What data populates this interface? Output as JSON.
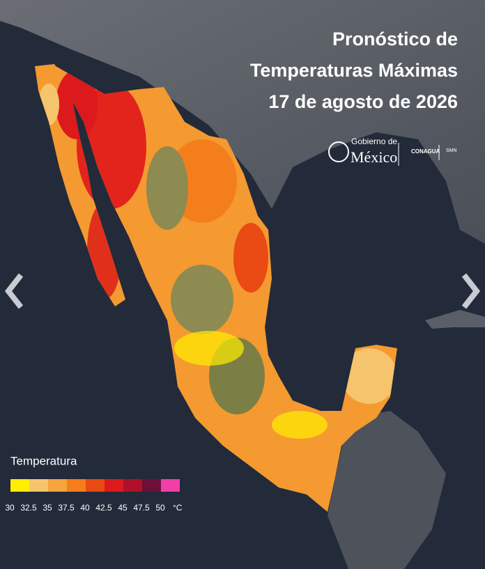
{
  "title": {
    "lines": [
      "Pronóstico de",
      "Temperaturas Máximas",
      "17 de agosto de 2026"
    ]
  },
  "logos": {
    "gobierno_line1": "Gobierno de",
    "gobierno_line2": "México",
    "conagua": "CONAGUA",
    "smn": "SMN"
  },
  "legend": {
    "title": "Temperatura",
    "colors": [
      "#ffee00",
      "#f6c46c",
      "#f5a53c",
      "#f47e1c",
      "#ea4a14",
      "#dc1a1e",
      "#b0102a",
      "#6c1038",
      "#f040a8"
    ],
    "ticks": [
      30,
      32.5,
      35,
      37.5,
      40,
      42.5,
      45,
      47.5,
      50
    ],
    "unit": "°C"
  }
}
